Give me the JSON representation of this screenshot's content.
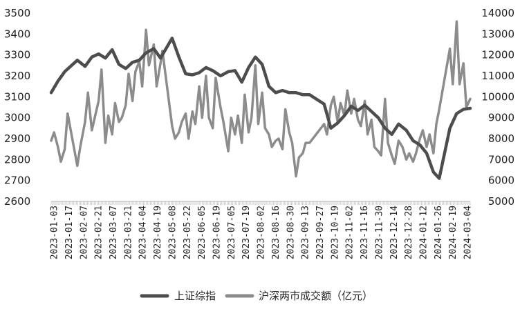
{
  "chart_data": {
    "type": "line",
    "title": "",
    "grid": false,
    "legend_position": "bottom",
    "y_left": {
      "ticks": [
        2600,
        2700,
        2800,
        2900,
        3000,
        3100,
        3200,
        3300,
        3400,
        3500
      ],
      "range": [
        2600,
        3500
      ]
    },
    "y_right": {
      "ticks": [
        5000,
        6000,
        7000,
        8000,
        9000,
        10000,
        11000,
        12000,
        13000,
        14000
      ],
      "range": [
        5000,
        14000
      ]
    },
    "x_tick_labels": [
      "2023-01-03",
      "2023-01-17",
      "2023-02-07",
      "2023-02-21",
      "2023-03-07",
      "2023-03-21",
      "2023-04-04",
      "2023-04-19",
      "2023-05-08",
      "2023-05-22",
      "2023-06-05",
      "2023-06-19",
      "2023-07-05",
      "2023-07-19",
      "2023-08-02",
      "2023-08-16",
      "2023-08-30",
      "2023-09-13",
      "2023-09-27",
      "2023-10-19",
      "2023-11-02",
      "2023-11-16",
      "2023-11-30",
      "2023-12-14",
      "2023-12-28",
      "2024-01-12",
      "2024-01-26",
      "2024-02-19",
      "2024-03-04"
    ],
    "series": [
      {
        "name": "上证综指",
        "axis": "left",
        "color": "#4d4d4d",
        "x": [
          "2023-01-03",
          "2023-01-10",
          "2023-01-17",
          "2023-01-30",
          "2023-02-07",
          "2023-02-14",
          "2023-02-21",
          "2023-02-28",
          "2023-03-07",
          "2023-03-14",
          "2023-03-21",
          "2023-03-28",
          "2023-04-04",
          "2023-04-11",
          "2023-04-19",
          "2023-04-26",
          "2023-05-08",
          "2023-05-15",
          "2023-05-22",
          "2023-05-29",
          "2023-06-05",
          "2023-06-12",
          "2023-06-19",
          "2023-06-27",
          "2023-07-05",
          "2023-07-12",
          "2023-07-19",
          "2023-07-26",
          "2023-08-02",
          "2023-08-09",
          "2023-08-16",
          "2023-08-23",
          "2023-08-30",
          "2023-09-06",
          "2023-09-13",
          "2023-09-20",
          "2023-09-27",
          "2023-10-12",
          "2023-10-19",
          "2023-10-26",
          "2023-11-02",
          "2023-11-09",
          "2023-11-16",
          "2023-11-23",
          "2023-11-30",
          "2023-12-07",
          "2023-12-14",
          "2023-12-21",
          "2023-12-28",
          "2024-01-05",
          "2024-01-12",
          "2024-01-19",
          "2024-01-26",
          "2024-02-02",
          "2024-02-08",
          "2024-02-19",
          "2024-02-26",
          "2024-03-04",
          "2024-03-11"
        ],
        "values": [
          3120,
          3175,
          3220,
          3275,
          3245,
          3290,
          3305,
          3285,
          3325,
          3255,
          3235,
          3265,
          3275,
          3310,
          3330,
          3285,
          3380,
          3290,
          3210,
          3205,
          3215,
          3240,
          3225,
          3200,
          3220,
          3225,
          3170,
          3240,
          3290,
          3255,
          3150,
          3120,
          3130,
          3120,
          3120,
          3110,
          3110,
          3065,
          2950,
          2975,
          3010,
          3055,
          3035,
          3060,
          3030,
          3000,
          2950,
          2920,
          2970,
          2940,
          2890,
          2870,
          2830,
          2740,
          2710,
          2950,
          3020,
          3040,
          3045
        ]
      },
      {
        "name": "沪深两市成交额（亿元）",
        "axis": "right",
        "color": "#8c8c8c",
        "x": [
          "2023-01-03",
          "2023-01-06",
          "2023-01-10",
          "2023-01-13",
          "2023-01-17",
          "2023-01-20",
          "2023-01-30",
          "2023-02-02",
          "2023-02-07",
          "2023-02-10",
          "2023-02-14",
          "2023-02-17",
          "2023-02-21",
          "2023-02-24",
          "2023-02-28",
          "2023-03-03",
          "2023-03-07",
          "2023-03-10",
          "2023-03-14",
          "2023-03-17",
          "2023-03-21",
          "2023-03-24",
          "2023-03-28",
          "2023-03-31",
          "2023-04-04",
          "2023-04-07",
          "2023-04-11",
          "2023-04-14",
          "2023-04-19",
          "2023-04-22",
          "2023-04-26",
          "2023-04-28",
          "2023-05-08",
          "2023-05-11",
          "2023-05-15",
          "2023-05-18",
          "2023-05-22",
          "2023-05-25",
          "2023-05-29",
          "2023-06-01",
          "2023-06-05",
          "2023-06-08",
          "2023-06-12",
          "2023-06-15",
          "2023-06-19",
          "2023-06-22",
          "2023-06-27",
          "2023-06-30",
          "2023-07-05",
          "2023-07-08",
          "2023-07-12",
          "2023-07-15",
          "2023-07-19",
          "2023-07-22",
          "2023-07-26",
          "2023-07-29",
          "2023-08-02",
          "2023-08-05",
          "2023-08-09",
          "2023-08-12",
          "2023-08-16",
          "2023-08-19",
          "2023-08-23",
          "2023-08-26",
          "2023-08-30",
          "2023-09-02",
          "2023-09-06",
          "2023-09-09",
          "2023-09-13",
          "2023-09-16",
          "2023-09-20",
          "2023-09-23",
          "2023-09-27",
          "2023-10-12",
          "2023-10-15",
          "2023-10-19",
          "2023-10-22",
          "2023-10-26",
          "2023-10-29",
          "2023-11-02",
          "2023-11-05",
          "2023-11-09",
          "2023-11-12",
          "2023-11-16",
          "2023-11-19",
          "2023-11-23",
          "2023-11-26",
          "2023-11-30",
          "2023-12-03",
          "2023-12-07",
          "2023-12-10",
          "2023-12-14",
          "2023-12-17",
          "2023-12-21",
          "2023-12-24",
          "2023-12-28",
          "2024-01-01",
          "2024-01-05",
          "2024-01-08",
          "2024-01-12",
          "2024-01-15",
          "2024-01-19",
          "2024-01-22",
          "2024-01-26",
          "2024-01-29",
          "2024-02-02",
          "2024-02-05",
          "2024-02-08",
          "2024-02-19",
          "2024-02-22",
          "2024-02-26",
          "2024-02-29",
          "2024-03-04",
          "2024-03-07",
          "2024-03-11"
        ],
        "values": [
          7900,
          8300,
          7600,
          6900,
          7500,
          9200,
          6700,
          7600,
          8800,
          10200,
          8400,
          9000,
          9800,
          11300,
          7800,
          9100,
          8200,
          9700,
          8800,
          9000,
          9600,
          11100,
          9800,
          11200,
          11700,
          10500,
          13200,
          11500,
          12500,
          10500,
          11600,
          12200,
          8600,
          8000,
          8300,
          8800,
          9200,
          8000,
          9300,
          8700,
          10500,
          9000,
          11000,
          9000,
          8500,
          10900,
          9500,
          8800,
          7400,
          9000,
          8200,
          9100,
          7800,
          10100,
          8300,
          9000,
          11500,
          8700,
          10200,
          8500,
          8200,
          7600,
          7900,
          8000,
          7500,
          9400,
          8300,
          7800,
          6200,
          7100,
          7300,
          7800,
          7800,
          8700,
          8200,
          9600,
          10000,
          8800,
          9700,
          9100,
          10300,
          9200,
          9900,
          8900,
          8600,
          9800,
          8200,
          8900,
          7600,
          7400,
          7200,
          9900,
          7800,
          7200,
          6800,
          7900,
          7600,
          7000,
          7300,
          6900,
          7300,
          8000,
          8400,
          7600,
          8200,
          7300,
          8700,
          9400,
          12300,
          10600,
          13600,
          10600,
          11600,
          9500,
          9900
        ]
      }
    ]
  },
  "legend": {
    "items": [
      {
        "label": "上证综指",
        "color": "#4d4d4d"
      },
      {
        "label": "沪深两市成交额（亿元）",
        "color": "#8c8c8c"
      }
    ]
  }
}
